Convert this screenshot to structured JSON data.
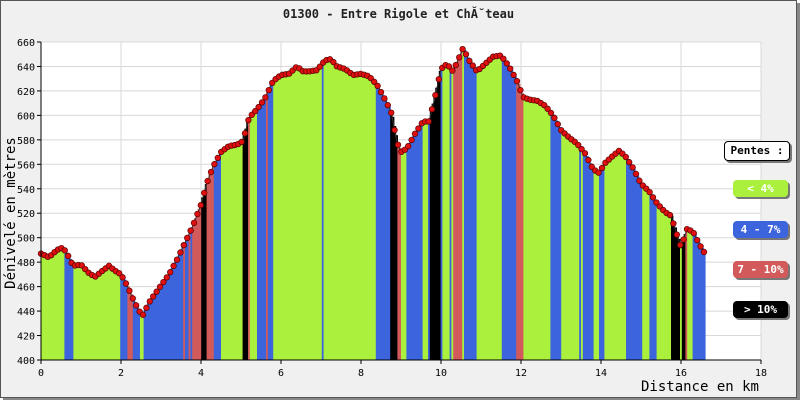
{
  "chart_data": {
    "type": "area",
    "title": "01300 - Entre Rigole et ChĂ˘teau",
    "xlabel": "Distance en km",
    "ylabel": "Dénivelé en mètres",
    "xlim": [
      0,
      18
    ],
    "ylim": [
      400,
      660
    ],
    "xticks": [
      "0",
      "2",
      "4",
      "6",
      "8",
      "10",
      "12",
      "14",
      "16",
      "18"
    ],
    "yticks": [
      "400",
      "420",
      "440",
      "460",
      "480",
      "500",
      "520",
      "540",
      "560",
      "580",
      "600",
      "620",
      "640",
      "660"
    ],
    "grid": true,
    "legend_position": "right",
    "legend_title": "Pentes :",
    "legend": [
      {
        "label": "< 4%",
        "color": "#aaf03c"
      },
      {
        "label": "4 - 7%",
        "color": "#3c64dc"
      },
      {
        "label": "7 - 10%",
        "color": "#d25a5a"
      },
      {
        "label": "> 10%",
        "color": "#000000"
      }
    ],
    "profile": [
      [
        0.0,
        487
      ],
      [
        0.2,
        484
      ],
      [
        0.4,
        490
      ],
      [
        0.55,
        492
      ],
      [
        0.7,
        484
      ],
      [
        0.8,
        477
      ],
      [
        1.0,
        478
      ],
      [
        1.2,
        471
      ],
      [
        1.35,
        468
      ],
      [
        1.5,
        472
      ],
      [
        1.7,
        477
      ],
      [
        1.85,
        473
      ],
      [
        2.0,
        470
      ],
      [
        2.15,
        461
      ],
      [
        2.3,
        450
      ],
      [
        2.45,
        440
      ],
      [
        2.55,
        437
      ],
      [
        2.7,
        447
      ],
      [
        2.85,
        454
      ],
      [
        3.0,
        461
      ],
      [
        3.2,
        470
      ],
      [
        3.4,
        482
      ],
      [
        3.6,
        496
      ],
      [
        3.8,
        510
      ],
      [
        4.0,
        527
      ],
      [
        4.15,
        545
      ],
      [
        4.3,
        558
      ],
      [
        4.5,
        570
      ],
      [
        4.7,
        575
      ],
      [
        4.9,
        576
      ],
      [
        5.05,
        579
      ],
      [
        5.2,
        598
      ],
      [
        5.4,
        605
      ],
      [
        5.6,
        614
      ],
      [
        5.8,
        628
      ],
      [
        6.0,
        633
      ],
      [
        6.2,
        634
      ],
      [
        6.4,
        640
      ],
      [
        6.55,
        636
      ],
      [
        6.7,
        636
      ],
      [
        6.9,
        637
      ],
      [
        7.1,
        645
      ],
      [
        7.25,
        646
      ],
      [
        7.4,
        640
      ],
      [
        7.6,
        638
      ],
      [
        7.8,
        633
      ],
      [
        8.0,
        634
      ],
      [
        8.2,
        632
      ],
      [
        8.4,
        625
      ],
      [
        8.6,
        613
      ],
      [
        8.75,
        603
      ],
      [
        8.9,
        578
      ],
      [
        9.0,
        570
      ],
      [
        9.15,
        573
      ],
      [
        9.35,
        585
      ],
      [
        9.55,
        595
      ],
      [
        9.7,
        595
      ],
      [
        9.85,
        615
      ],
      [
        10.0,
        638
      ],
      [
        10.15,
        642
      ],
      [
        10.3,
        636
      ],
      [
        10.45,
        647
      ],
      [
        10.55,
        655
      ],
      [
        10.7,
        645
      ],
      [
        10.9,
        636
      ],
      [
        11.1,
        642
      ],
      [
        11.3,
        648
      ],
      [
        11.5,
        649
      ],
      [
        11.7,
        640
      ],
      [
        11.9,
        628
      ],
      [
        12.05,
        615
      ],
      [
        12.2,
        613
      ],
      [
        12.4,
        612
      ],
      [
        12.6,
        608
      ],
      [
        12.8,
        600
      ],
      [
        13.0,
        588
      ],
      [
        13.2,
        582
      ],
      [
        13.4,
        577
      ],
      [
        13.6,
        569
      ],
      [
        13.8,
        556
      ],
      [
        13.95,
        553
      ],
      [
        14.1,
        561
      ],
      [
        14.3,
        567
      ],
      [
        14.45,
        571
      ],
      [
        14.6,
        567
      ],
      [
        14.8,
        557
      ],
      [
        15.0,
        544
      ],
      [
        15.2,
        538
      ],
      [
        15.4,
        528
      ],
      [
        15.6,
        521
      ],
      [
        15.75,
        518
      ],
      [
        15.9,
        502
      ],
      [
        16.0,
        492
      ],
      [
        16.15,
        507
      ],
      [
        16.3,
        505
      ],
      [
        16.45,
        495
      ],
      [
        16.6,
        487
      ]
    ]
  }
}
